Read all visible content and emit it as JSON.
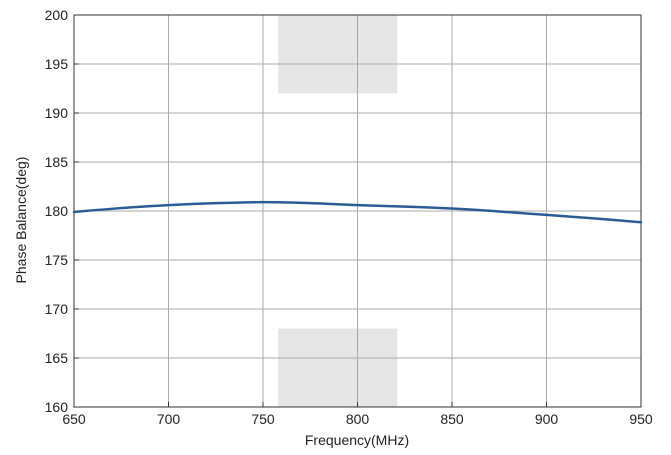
{
  "chart_data": {
    "type": "line",
    "title": "",
    "xlabel": "Frequency(MHz)",
    "ylabel": "Phase Balance(deg)",
    "xlim": [
      650,
      950
    ],
    "ylim": [
      160,
      200
    ],
    "grid": true,
    "x_ticks": [
      650,
      700,
      750,
      800,
      850,
      900,
      950
    ],
    "y_ticks": [
      160,
      165,
      170,
      175,
      180,
      185,
      190,
      195,
      200
    ],
    "series": [
      {
        "color": "#2a5d96",
        "x": [
          650,
          675,
          700,
          725,
          750,
          775,
          800,
          825,
          850,
          875,
          900,
          925,
          950
        ],
        "y": [
          179.9,
          180.3,
          180.6,
          180.8,
          180.9,
          180.8,
          180.6,
          180.45,
          180.25,
          179.95,
          179.6,
          179.25,
          178.85
        ]
      }
    ],
    "shaded_regions": [
      {
        "x": [
          758,
          821
        ],
        "y": [
          192,
          200
        ],
        "color": "#e5e5e6"
      },
      {
        "x": [
          758,
          821
        ],
        "y": [
          160,
          168
        ],
        "color": "#e5e5e6"
      }
    ]
  }
}
